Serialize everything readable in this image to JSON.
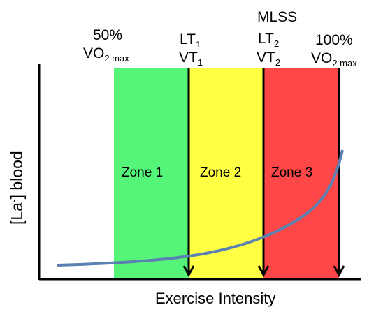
{
  "labels": {
    "pct50": "50%",
    "vo2_50_base": "VO",
    "vo2_50_sub": "2 max",
    "lt1_base": "LT",
    "lt1_sub": "1",
    "vt1_base": "VT",
    "vt1_sub": "1",
    "mlss": "MLSS",
    "lt2_base": "LT",
    "lt2_sub": "2",
    "vt2_base": "VT",
    "vt2_sub": "2",
    "pct100": "100%",
    "vo2_100_base": "VO",
    "vo2_100_sub": "2 max"
  },
  "zones": [
    {
      "label": "Zone 1",
      "color": "#55f57a"
    },
    {
      "label": "Zone 2",
      "color": "#ffff44"
    },
    {
      "label": "Zone 3",
      "color": "#ff4747"
    }
  ],
  "axes": {
    "y_label_prefix": "[La",
    "y_label_sup": "-",
    "y_label_suffix": "] blood",
    "x_label": "Exercise Intensity"
  },
  "curve_color": "#5b80b2"
}
